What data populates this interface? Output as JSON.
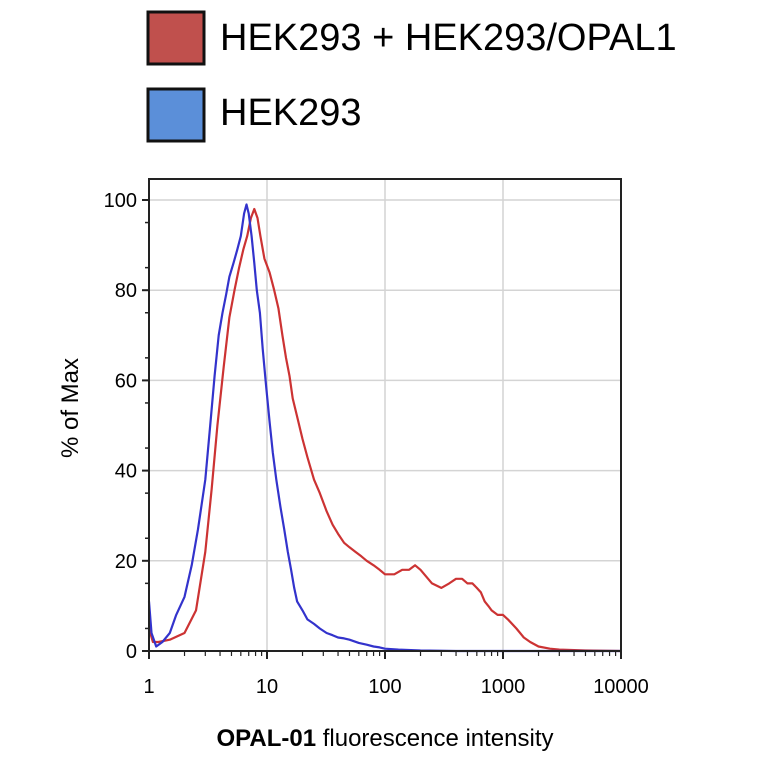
{
  "chart_data": {
    "type": "line",
    "xlabel_bold": "OPAL-01",
    "xlabel_rest": " fluorescence intensity",
    "ylabel": "% of Max",
    "x_scale": "log",
    "xlim": [
      1,
      10000
    ],
    "ylim": [
      0,
      100
    ],
    "x_ticks": [
      1,
      10,
      100,
      1000,
      10000
    ],
    "x_tick_labels": [
      "1",
      "10",
      "100",
      "1000",
      "10000"
    ],
    "y_ticks": [
      0,
      20,
      40,
      60,
      80,
      100
    ],
    "y_tick_labels": [
      "0",
      "20",
      "40",
      "60",
      "80",
      "100"
    ],
    "grid": true,
    "legend_position": "top",
    "series": [
      {
        "name": "HEK293 + HEK293/OPAL1",
        "color": "#cc3333",
        "fill": "#c0504d",
        "points": [
          [
            1.0,
            5
          ],
          [
            1.08,
            2
          ],
          [
            1.2,
            2
          ],
          [
            1.5,
            2.5
          ],
          [
            2.0,
            4
          ],
          [
            2.5,
            9
          ],
          [
            3.0,
            22
          ],
          [
            3.4,
            36
          ],
          [
            3.8,
            50
          ],
          [
            4.3,
            63
          ],
          [
            4.8,
            74
          ],
          [
            5.3,
            80
          ],
          [
            5.8,
            85
          ],
          [
            6.3,
            89
          ],
          [
            6.8,
            92
          ],
          [
            7.3,
            96
          ],
          [
            7.8,
            98
          ],
          [
            8.3,
            96
          ],
          [
            8.8,
            92
          ],
          [
            9.5,
            87
          ],
          [
            10.5,
            84
          ],
          [
            11.5,
            80
          ],
          [
            12.5,
            76
          ],
          [
            13.5,
            70
          ],
          [
            14.5,
            65
          ],
          [
            15.5,
            61
          ],
          [
            16.5,
            56
          ],
          [
            18,
            52
          ],
          [
            20,
            47
          ],
          [
            22,
            43
          ],
          [
            25,
            38
          ],
          [
            28,
            35
          ],
          [
            32,
            31
          ],
          [
            36,
            28
          ],
          [
            40,
            26
          ],
          [
            45,
            24
          ],
          [
            50,
            23
          ],
          [
            56,
            22
          ],
          [
            63,
            21
          ],
          [
            70,
            20
          ],
          [
            80,
            19
          ],
          [
            90,
            18
          ],
          [
            100,
            17
          ],
          [
            120,
            17
          ],
          [
            140,
            18
          ],
          [
            160,
            18
          ],
          [
            180,
            19
          ],
          [
            200,
            18
          ],
          [
            250,
            15
          ],
          [
            300,
            14
          ],
          [
            350,
            15
          ],
          [
            400,
            16
          ],
          [
            450,
            16
          ],
          [
            500,
            15
          ],
          [
            550,
            15
          ],
          [
            600,
            14
          ],
          [
            650,
            13
          ],
          [
            700,
            11
          ],
          [
            750,
            10
          ],
          [
            800,
            9
          ],
          [
            900,
            8
          ],
          [
            1000,
            8
          ],
          [
            1100,
            7
          ],
          [
            1300,
            5
          ],
          [
            1500,
            3
          ],
          [
            1700,
            2
          ],
          [
            2000,
            1
          ],
          [
            2500,
            0.5
          ],
          [
            3000,
            0.3
          ],
          [
            5000,
            0.1
          ],
          [
            10000,
            0
          ]
        ]
      },
      {
        "name": "HEK293",
        "color": "#3333cc",
        "fill": "#5b8fd9",
        "points": [
          [
            1.0,
            11
          ],
          [
            1.05,
            4
          ],
          [
            1.15,
            1
          ],
          [
            1.3,
            2
          ],
          [
            1.5,
            4
          ],
          [
            1.7,
            8
          ],
          [
            2.0,
            12
          ],
          [
            2.3,
            19
          ],
          [
            2.6,
            27
          ],
          [
            3.0,
            38
          ],
          [
            3.3,
            50
          ],
          [
            3.6,
            61
          ],
          [
            3.9,
            70
          ],
          [
            4.2,
            75
          ],
          [
            4.5,
            79
          ],
          [
            4.8,
            83
          ],
          [
            5.2,
            86
          ],
          [
            5.6,
            89
          ],
          [
            6.0,
            92
          ],
          [
            6.4,
            97
          ],
          [
            6.7,
            99
          ],
          [
            7.0,
            97
          ],
          [
            7.4,
            92
          ],
          [
            7.8,
            86
          ],
          [
            8.2,
            80
          ],
          [
            8.7,
            75
          ],
          [
            9.2,
            67
          ],
          [
            9.8,
            59
          ],
          [
            10.5,
            51
          ],
          [
            11.2,
            44
          ],
          [
            12,
            38
          ],
          [
            13,
            32
          ],
          [
            14,
            27
          ],
          [
            15,
            22
          ],
          [
            16,
            18
          ],
          [
            17,
            14
          ],
          [
            18,
            11
          ],
          [
            20,
            9
          ],
          [
            22,
            7
          ],
          [
            25,
            6
          ],
          [
            28,
            5
          ],
          [
            32,
            4
          ],
          [
            36,
            3.5
          ],
          [
            40,
            3
          ],
          [
            45,
            2.8
          ],
          [
            50,
            2.5
          ],
          [
            60,
            1.8
          ],
          [
            70,
            1.4
          ],
          [
            80,
            1.0
          ],
          [
            90,
            0.8
          ],
          [
            100,
            0.5
          ],
          [
            130,
            0.3
          ],
          [
            200,
            0.1
          ],
          [
            400,
            0
          ],
          [
            10000,
            0
          ]
        ]
      }
    ]
  }
}
